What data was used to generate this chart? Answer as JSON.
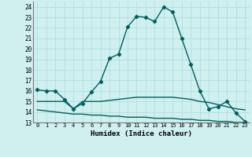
{
  "xlabel": "Humidex (Indice chaleur)",
  "x_values": [
    0,
    1,
    2,
    3,
    4,
    5,
    6,
    7,
    8,
    9,
    10,
    11,
    12,
    13,
    14,
    15,
    16,
    17,
    18,
    19,
    20,
    21,
    22,
    23
  ],
  "line1_y": [
    16.1,
    16.0,
    16.0,
    15.2,
    14.3,
    14.8,
    15.9,
    16.9,
    19.1,
    19.5,
    22.1,
    23.1,
    23.0,
    22.6,
    24.0,
    23.5,
    21.0,
    18.5,
    16.0,
    14.3,
    14.5,
    15.0,
    13.9,
    13.1
  ],
  "line2_y": [
    15.0,
    15.0,
    15.0,
    15.0,
    14.3,
    15.0,
    15.0,
    15.0,
    15.1,
    15.2,
    15.3,
    15.4,
    15.4,
    15.4,
    15.4,
    15.4,
    15.3,
    15.2,
    15.0,
    14.9,
    14.7,
    14.5,
    14.3,
    14.2
  ],
  "line3_y": [
    14.2,
    14.1,
    14.0,
    13.9,
    13.8,
    13.8,
    13.7,
    13.7,
    13.6,
    13.6,
    13.5,
    13.5,
    13.5,
    13.4,
    13.4,
    13.4,
    13.3,
    13.3,
    13.2,
    13.2,
    13.1,
    13.1,
    13.0,
    13.0
  ],
  "line_color": "#006060",
  "bg_color": "#d0efef",
  "grid_color": "#aadddd",
  "ylim": [
    13,
    24.5
  ],
  "yticks": [
    13,
    14,
    15,
    16,
    17,
    18,
    19,
    20,
    21,
    22,
    23,
    24
  ],
  "marker": "D",
  "marker_size": 2.2,
  "line_width": 1.0
}
